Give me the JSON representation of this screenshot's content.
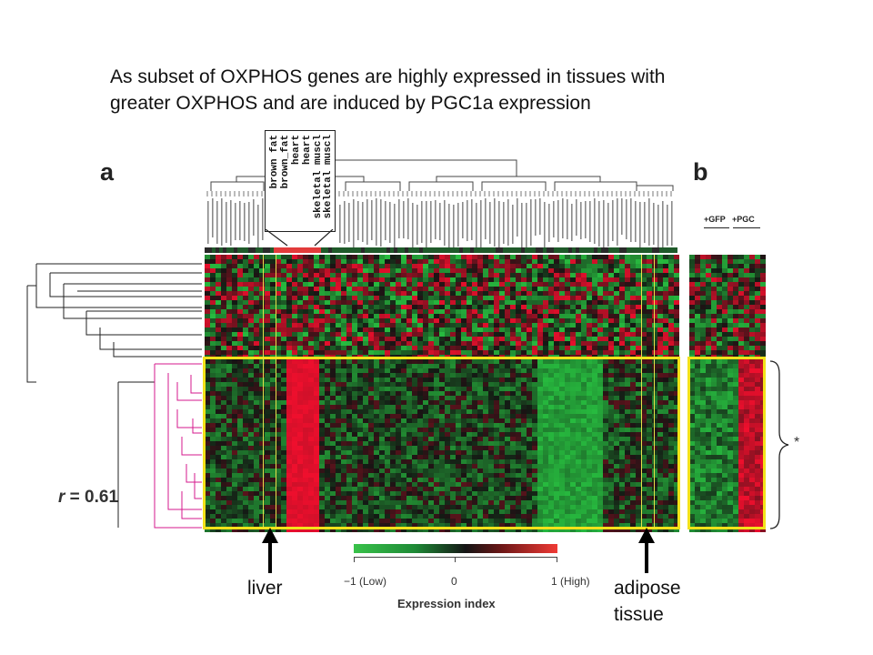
{
  "headline": {
    "line1": "As subset of OXPHOS genes are highly expressed in tissues with",
    "line2": "greater OXPHOS and are induced by PGC1a expression"
  },
  "panels": {
    "a": "a",
    "b": "b"
  },
  "tissue_labels": [
    "brown fat",
    "brown_fat",
    "heart",
    "heart",
    "skeletal muscl",
    "skeletal muscl"
  ],
  "correlation": {
    "r_label": "r",
    "r_value": " = 0.61"
  },
  "panel_b_groups": {
    "gfp": "+GFP",
    "pgc": "+PGC"
  },
  "asterisk": "*",
  "arrows": {
    "liver": "liver",
    "adipose_line1": "adipose",
    "adipose_line2": "tissue"
  },
  "colorbar": {
    "low_label": "−1 (Low)",
    "mid_label": "0",
    "high_label": "1 (High)",
    "title": "Expression index"
  },
  "colors": {
    "highlight": "#f2e21a",
    "cluster_magenta": "#d61a8c",
    "low_green": "#39c24a",
    "high_red": "#f03a35"
  }
}
